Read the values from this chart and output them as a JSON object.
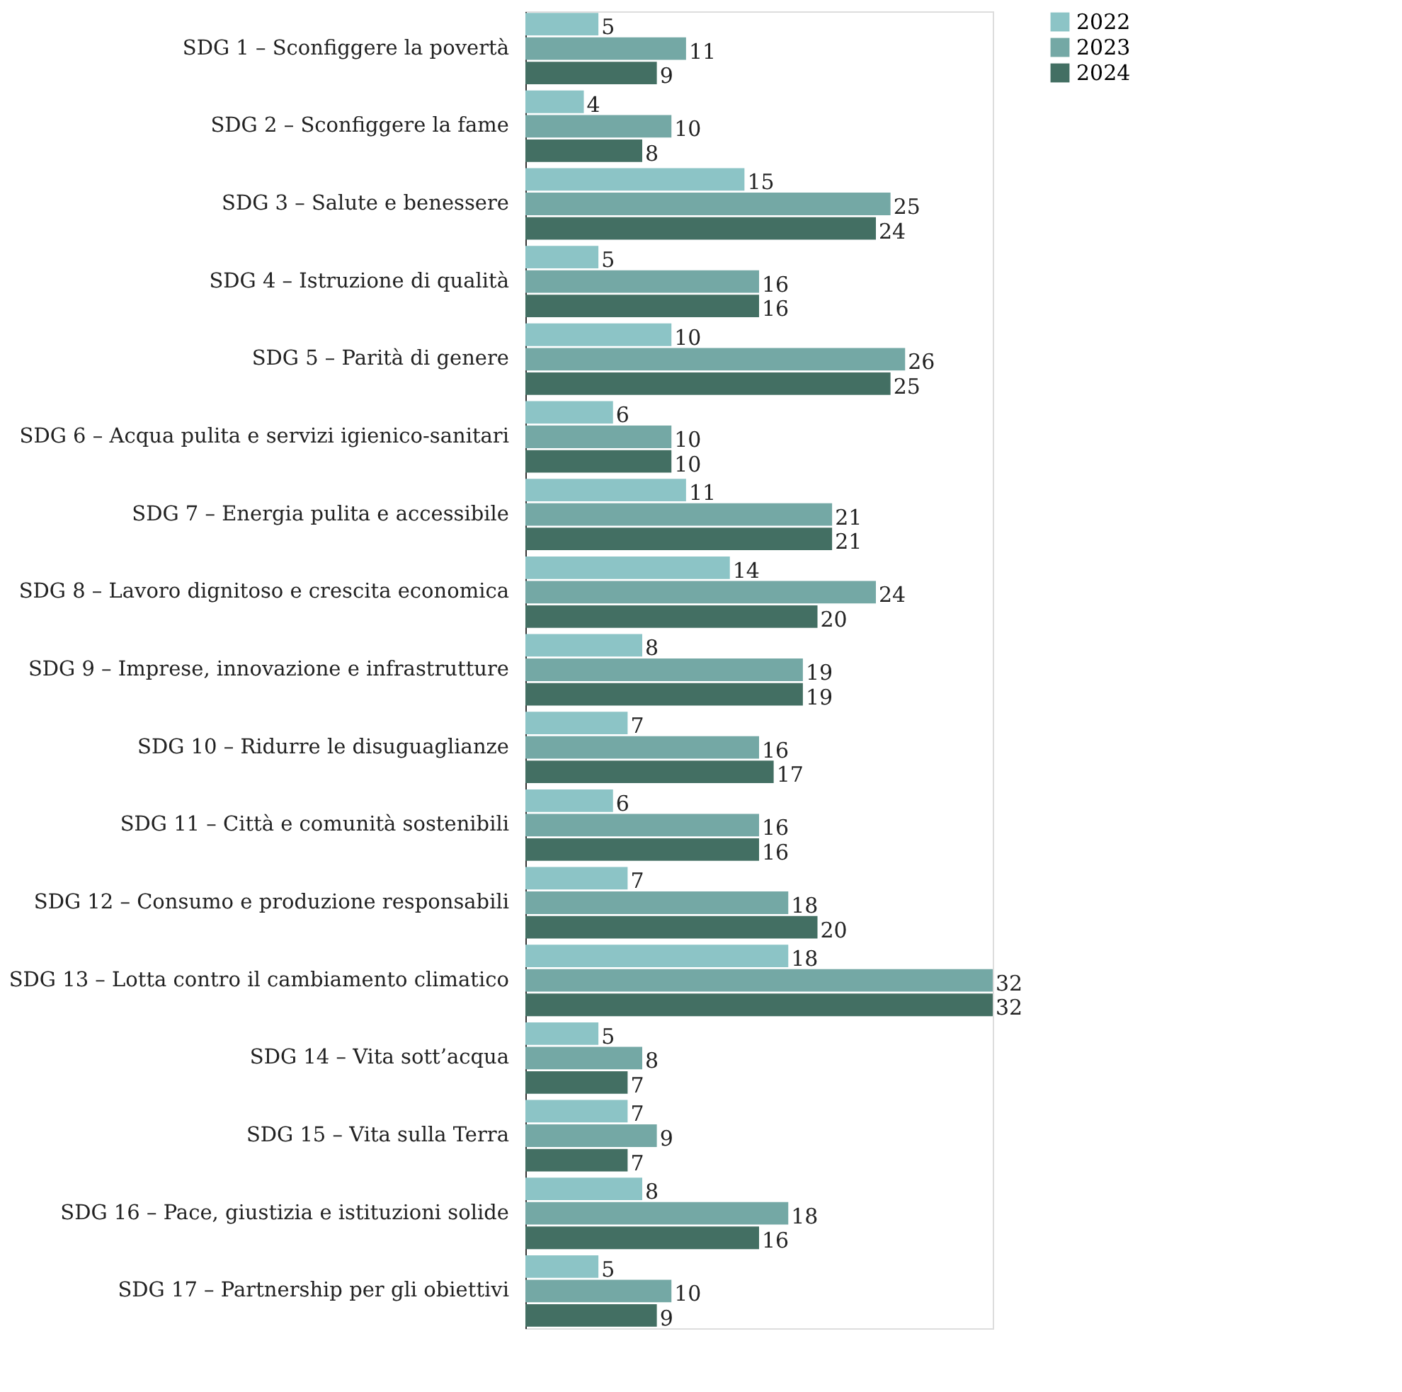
{
  "chart_data": {
    "type": "bar",
    "orientation": "horizontal",
    "data_labels": true,
    "legend": "top right",
    "tick_labels": "y",
    "categories": [
      "SDG 1 – Sconfiggere la povertà",
      "SDG 2 – Sconfiggere la fame",
      "SDG 3 – Salute e benessere",
      "SDG 4 – Istruzione di qualità",
      "SDG 5 – Parità di genere",
      "SDG 6 – Acqua pulita e servizi igienico-sanitari",
      "SDG 7 – Energia pulita e accessibile",
      "SDG 8 – Lavoro dignitoso e crescita economica",
      "SDG 9 – Imprese, innovazione e infrastrutture",
      "SDG 10 – Ridurre le disuguaglianze",
      "SDG 11 – Città e comunità sostenibili",
      "SDG 12 – Consumo e produzione responsabili",
      "SDG 13 – Lotta contro il cambiamento climatico",
      "SDG 14 – Vita sott’acqua",
      "SDG 15 – Vita sulla Terra",
      "SDG 16 – Pace, giustizia e istituzioni solide",
      "SDG 17 – Partnership per gli obiettivi"
    ],
    "series": [
      {
        "name": "2022",
        "color": "#8cc4c6",
        "values": [
          5,
          4,
          15,
          5,
          10,
          6,
          11,
          14,
          8,
          7,
          6,
          7,
          18,
          5,
          7,
          8,
          5
        ]
      },
      {
        "name": "2023",
        "color": "#74a8a5",
        "values": [
          11,
          10,
          25,
          16,
          26,
          10,
          21,
          24,
          19,
          16,
          16,
          18,
          32,
          8,
          9,
          18,
          10
        ]
      },
      {
        "name": "2024",
        "color": "#436f63",
        "values": [
          9,
          8,
          24,
          16,
          25,
          10,
          21,
          20,
          19,
          17,
          16,
          20,
          32,
          7,
          7,
          16,
          9
        ]
      }
    ]
  }
}
